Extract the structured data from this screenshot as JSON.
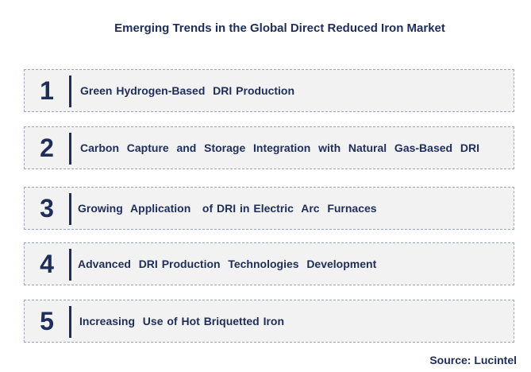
{
  "title": "Emerging Trends in the Global Direct Reduced Iron Market",
  "trends": [
    {
      "number": "1",
      "label": "Green Hydrogen-Based  DRI Production"
    },
    {
      "number": "2",
      "label": "Carbon  Capture  and  Storage  Integration  with  Natural  Gas-Based  DRI"
    },
    {
      "number": "3",
      "label": "Growing  Application   of DRI in Electric  Arc  Furnaces"
    },
    {
      "number": "4",
      "label": "Advanced  DRI Production  Technologies  Development"
    },
    {
      "number": "5",
      "label": "Increasing  Use of Hot Briquetted Iron"
    }
  ],
  "source": "Source: Lucintel",
  "colors": {
    "text": "#1f2d5a",
    "box_fill": "#f2f2f2",
    "box_border": "#9aa6c4"
  }
}
